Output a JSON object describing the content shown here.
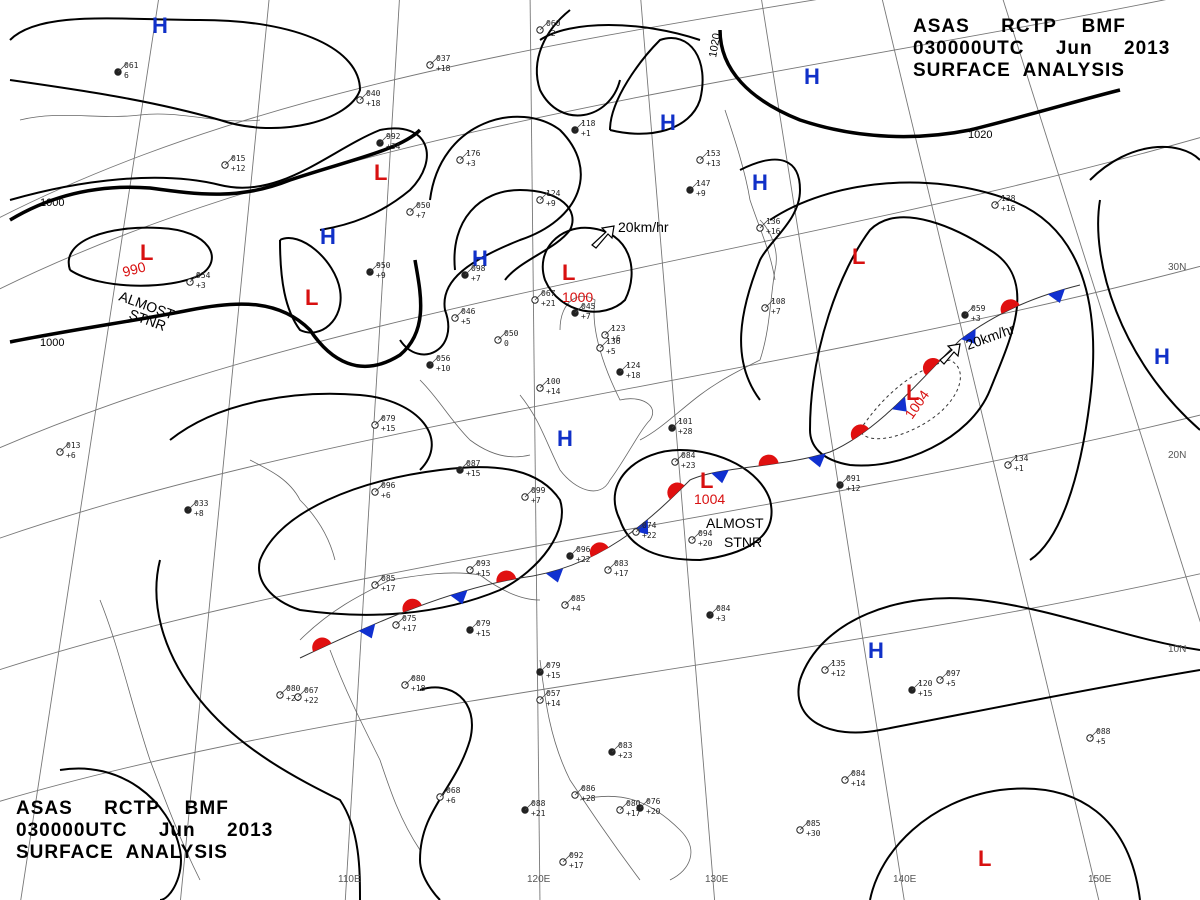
{
  "header": {
    "top_right": [
      "ASAS     RCTP    BMF",
      "030000UTC     Jun     2013",
      "SURFACE  ANALYSIS"
    ],
    "bottom_left": [
      "ASAS     RCTP    BMF",
      "030000UTC     Jun     2013",
      "SURFACE  ANALYSIS"
    ]
  },
  "longitude_labels": [
    "110E",
    "120E",
    "130E",
    "140E",
    "150E"
  ],
  "latitude_labels": [
    "30N",
    "20N",
    "10N"
  ],
  "isobar_labels": [
    "1000",
    "1000",
    "1020",
    "1020"
  ],
  "pressure_centers": [
    {
      "type": "H"
    },
    {
      "type": "H"
    },
    {
      "type": "H"
    },
    {
      "type": "H"
    },
    {
      "type": "H"
    },
    {
      "type": "H"
    },
    {
      "type": "H"
    },
    {
      "type": "H"
    },
    {
      "type": "H"
    },
    {
      "type": "L",
      "value": "990"
    },
    {
      "type": "L"
    },
    {
      "type": "L"
    },
    {
      "type": "L",
      "value": "1000"
    },
    {
      "type": "L"
    },
    {
      "type": "L",
      "value": "1004"
    },
    {
      "type": "L",
      "value": "1004"
    },
    {
      "type": "L"
    },
    {
      "type": "L"
    }
  ],
  "annotations": {
    "stnr_west": [
      "ALMOST",
      "STNR"
    ],
    "stnr_east": [
      "ALMOST",
      "STNR"
    ],
    "motion_1": "20km/hr",
    "motion_2": "20km/hr"
  },
  "stations": [
    {
      "a": "061",
      "b": "6"
    },
    {
      "a": "037",
      "b": "+18"
    },
    {
      "a": "040",
      "b": "+18"
    },
    {
      "a": "992",
      "b": "+34"
    },
    {
      "a": "015",
      "b": "+12"
    },
    {
      "a": "060",
      "b": "-2"
    },
    {
      "a": "118",
      "b": "+1"
    },
    {
      "a": "176",
      "b": "+3"
    },
    {
      "a": "153",
      "b": "+13"
    },
    {
      "a": "147",
      "b": "+9"
    },
    {
      "a": "136",
      "b": "+16"
    },
    {
      "a": "050",
      "b": "+7"
    },
    {
      "a": "950",
      "b": "+9"
    },
    {
      "a": "954",
      "b": "+3"
    },
    {
      "a": "093",
      "b": "+15"
    },
    {
      "a": "098",
      "b": "+7"
    },
    {
      "a": "124",
      "b": "+9"
    },
    {
      "a": "067",
      "b": "+21"
    },
    {
      "a": "045",
      "b": "+7"
    },
    {
      "a": "046",
      "b": "+5"
    },
    {
      "a": "050",
      "b": "0"
    },
    {
      "a": "056",
      "b": "+10"
    },
    {
      "a": "123",
      "b": "+6"
    },
    {
      "a": "136",
      "b": "+5"
    },
    {
      "a": "124",
      "b": "+18"
    },
    {
      "a": "100",
      "b": "+14"
    },
    {
      "a": "108",
      "b": "+7"
    },
    {
      "a": "059",
      "b": "+3"
    },
    {
      "a": "138",
      "b": "+16"
    },
    {
      "a": "079",
      "b": "+15"
    },
    {
      "a": "087",
      "b": "+15"
    },
    {
      "a": "096",
      "b": "+6"
    },
    {
      "a": "099",
      "b": "+7"
    },
    {
      "a": "091",
      "b": "+12"
    },
    {
      "a": "134",
      "b": "+1"
    },
    {
      "a": "013",
      "b": "+6"
    },
    {
      "a": "033",
      "b": "+8"
    },
    {
      "a": "085",
      "b": "+17"
    },
    {
      "a": "075",
      "b": "+17"
    },
    {
      "a": "079",
      "b": "+15"
    },
    {
      "a": "080",
      "b": "+18"
    },
    {
      "a": "085",
      "b": "+4"
    },
    {
      "a": "084",
      "b": "+3"
    },
    {
      "a": "080",
      "b": "+20"
    },
    {
      "a": "067",
      "b": "+22"
    },
    {
      "a": "079",
      "b": "+15"
    },
    {
      "a": "057",
      "b": "+14"
    },
    {
      "a": "135",
      "b": "+12"
    },
    {
      "a": "120",
      "b": "+15"
    },
    {
      "a": "097",
      "b": "+5"
    },
    {
      "a": "088",
      "b": "+5"
    },
    {
      "a": "083",
      "b": "+23"
    },
    {
      "a": "084",
      "b": "+14"
    },
    {
      "a": "068",
      "b": "+6"
    },
    {
      "a": "088",
      "b": "+21"
    },
    {
      "a": "086",
      "b": "+28"
    },
    {
      "a": "080",
      "b": "+17"
    },
    {
      "a": "076",
      "b": "+20"
    },
    {
      "a": "085",
      "b": "+30"
    },
    {
      "a": "092",
      "b": "+17"
    },
    {
      "a": "101",
      "b": "+28"
    },
    {
      "a": "084",
      "b": "+23"
    },
    {
      "a": "074",
      "b": "+22"
    },
    {
      "a": "096",
      "b": "+22"
    },
    {
      "a": "083",
      "b": "+17"
    },
    {
      "a": "094",
      "b": "+20"
    }
  ],
  "colors": {
    "high": "#1030c8",
    "low": "#d81010",
    "warm_front": "#e01010",
    "cold_front": "#1030d0",
    "isobar": "#000000"
  }
}
